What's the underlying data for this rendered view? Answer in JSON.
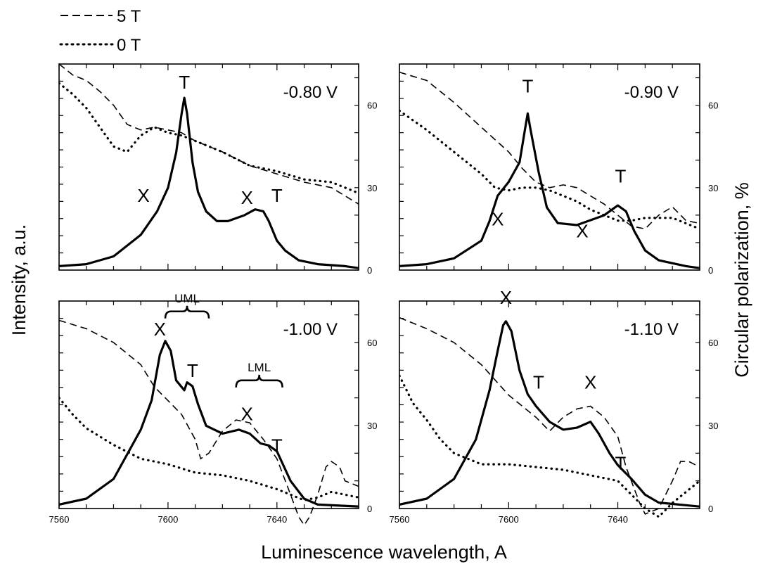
{
  "chart_data": {
    "type": "line",
    "x_label": "Luminescence wavelength, A",
    "y_label_left": "Intensity, a.u.",
    "y_label_right": "Circular polarization, %",
    "x_range": [
      7560,
      7670
    ],
    "x_ticks": [
      7560,
      7600,
      7640
    ],
    "right_y_range": [
      0,
      75
    ],
    "right_y_ticks": [
      0,
      30,
      60
    ],
    "legend": [
      {
        "label": "5 T",
        "style": "dashed"
      },
      {
        "label": "0 T",
        "style": "dotted"
      }
    ],
    "panels": [
      {
        "title": "-0.80 V",
        "intensity": [
          [
            7560,
            2
          ],
          [
            7570,
            3
          ],
          [
            7580,
            7
          ],
          [
            7590,
            18
          ],
          [
            7596,
            30
          ],
          [
            7600,
            42
          ],
          [
            7603,
            60
          ],
          [
            7605,
            80
          ],
          [
            7606,
            88
          ],
          [
            7607,
            80
          ],
          [
            7609,
            55
          ],
          [
            7611,
            40
          ],
          [
            7614,
            30
          ],
          [
            7618,
            25
          ],
          [
            7622,
            25
          ],
          [
            7628,
            28
          ],
          [
            7632,
            31
          ],
          [
            7635,
            30
          ],
          [
            7637,
            25
          ],
          [
            7640,
            15
          ],
          [
            7643,
            10
          ],
          [
            7648,
            5
          ],
          [
            7655,
            3
          ],
          [
            7665,
            2
          ],
          [
            7670,
            1
          ]
        ],
        "polarization_5T": [
          [
            7560,
            75
          ],
          [
            7565,
            71
          ],
          [
            7570,
            69
          ],
          [
            7575,
            65
          ],
          [
            7580,
            60
          ],
          [
            7585,
            53
          ],
          [
            7590,
            51
          ],
          [
            7595,
            52
          ],
          [
            7600,
            51
          ],
          [
            7605,
            50
          ],
          [
            7610,
            47
          ],
          [
            7620,
            43
          ],
          [
            7630,
            38
          ],
          [
            7640,
            35
          ],
          [
            7650,
            32
          ],
          [
            7660,
            30
          ],
          [
            7670,
            24
          ]
        ],
        "polarization_0T": [
          [
            7560,
            68
          ],
          [
            7565,
            64
          ],
          [
            7570,
            59
          ],
          [
            7575,
            52
          ],
          [
            7580,
            45
          ],
          [
            7585,
            43
          ],
          [
            7590,
            49
          ],
          [
            7595,
            52
          ],
          [
            7600,
            50
          ],
          [
            7605,
            49
          ],
          [
            7610,
            47
          ],
          [
            7620,
            43
          ],
          [
            7630,
            38
          ],
          [
            7640,
            36
          ],
          [
            7650,
            33
          ],
          [
            7660,
            32
          ],
          [
            7670,
            28
          ]
        ],
        "peak_labels": [
          {
            "text": "T",
            "x": 7606,
            "y": 96
          },
          {
            "text": "X",
            "x": 7591,
            "y": 38
          },
          {
            "text": "X",
            "x": 7629,
            "y": 37
          },
          {
            "text": "T",
            "x": 7640,
            "y": 38
          }
        ]
      },
      {
        "title": "-0.90 V",
        "intensity": [
          [
            7560,
            2
          ],
          [
            7570,
            3
          ],
          [
            7580,
            6
          ],
          [
            7590,
            15
          ],
          [
            7593,
            25
          ],
          [
            7596,
            38
          ],
          [
            7600,
            45
          ],
          [
            7604,
            55
          ],
          [
            7606,
            72
          ],
          [
            7607,
            80
          ],
          [
            7608,
            72
          ],
          [
            7611,
            50
          ],
          [
            7614,
            32
          ],
          [
            7618,
            24
          ],
          [
            7625,
            23
          ],
          [
            7635,
            28
          ],
          [
            7640,
            33
          ],
          [
            7643,
            30
          ],
          [
            7646,
            20
          ],
          [
            7650,
            10
          ],
          [
            7655,
            5
          ],
          [
            7665,
            2
          ],
          [
            7670,
            1
          ]
        ],
        "polarization_5T": [
          [
            7560,
            72
          ],
          [
            7570,
            69
          ],
          [
            7580,
            61
          ],
          [
            7590,
            52
          ],
          [
            7600,
            43
          ],
          [
            7605,
            37
          ],
          [
            7610,
            32
          ],
          [
            7615,
            30
          ],
          [
            7620,
            31
          ],
          [
            7625,
            30
          ],
          [
            7630,
            27
          ],
          [
            7635,
            24
          ],
          [
            7640,
            20
          ],
          [
            7645,
            16
          ],
          [
            7650,
            15
          ],
          [
            7655,
            20
          ],
          [
            7660,
            23
          ],
          [
            7665,
            18
          ],
          [
            7670,
            17
          ]
        ],
        "polarization_0T": [
          [
            7560,
            58
          ],
          [
            7570,
            51
          ],
          [
            7580,
            43
          ],
          [
            7590,
            35
          ],
          [
            7595,
            30
          ],
          [
            7600,
            29
          ],
          [
            7605,
            30
          ],
          [
            7610,
            30
          ],
          [
            7615,
            29
          ],
          [
            7620,
            27
          ],
          [
            7625,
            25
          ],
          [
            7630,
            22
          ],
          [
            7635,
            20
          ],
          [
            7640,
            18
          ],
          [
            7645,
            18
          ],
          [
            7650,
            19
          ],
          [
            7660,
            19
          ],
          [
            7670,
            15
          ]
        ],
        "peak_labels": [
          {
            "text": "T",
            "x": 7607,
            "y": 94
          },
          {
            "text": "X",
            "x": 7596,
            "y": 26
          },
          {
            "text": "X",
            "x": 7627,
            "y": 20
          },
          {
            "text": "T",
            "x": 7641,
            "y": 48
          }
        ]
      },
      {
        "title": "-1.00 V",
        "intensity": [
          [
            7560,
            2
          ],
          [
            7570,
            5
          ],
          [
            7580,
            15
          ],
          [
            7590,
            40
          ],
          [
            7594,
            55
          ],
          [
            7597,
            78
          ],
          [
            7599,
            85
          ],
          [
            7601,
            80
          ],
          [
            7603,
            65
          ],
          [
            7606,
            60
          ],
          [
            7607,
            64
          ],
          [
            7609,
            62
          ],
          [
            7611,
            53
          ],
          [
            7614,
            42
          ],
          [
            7620,
            38
          ],
          [
            7626,
            40
          ],
          [
            7630,
            38
          ],
          [
            7634,
            33
          ],
          [
            7637,
            32
          ],
          [
            7640,
            29
          ],
          [
            7645,
            14
          ],
          [
            7650,
            5
          ],
          [
            7655,
            2
          ],
          [
            7670,
            1
          ]
        ],
        "polarization_5T": [
          [
            7560,
            68
          ],
          [
            7570,
            65
          ],
          [
            7580,
            60
          ],
          [
            7590,
            52
          ],
          [
            7595,
            44
          ],
          [
            7600,
            39
          ],
          [
            7605,
            34
          ],
          [
            7610,
            25
          ],
          [
            7612,
            18
          ],
          [
            7615,
            20
          ],
          [
            7620,
            28
          ],
          [
            7625,
            32
          ],
          [
            7630,
            31
          ],
          [
            7635,
            25
          ],
          [
            7640,
            18
          ],
          [
            7645,
            5
          ],
          [
            7648,
            -3
          ],
          [
            7650,
            -6
          ],
          [
            7652,
            -3
          ],
          [
            7655,
            5
          ],
          [
            7658,
            15
          ],
          [
            7660,
            17
          ],
          [
            7663,
            15
          ],
          [
            7665,
            10
          ],
          [
            7670,
            8
          ]
        ],
        "polarization_0T": [
          [
            7560,
            40
          ],
          [
            7565,
            34
          ],
          [
            7570,
            29
          ],
          [
            7580,
            23
          ],
          [
            7590,
            18
          ],
          [
            7600,
            16
          ],
          [
            7610,
            13
          ],
          [
            7620,
            12
          ],
          [
            7630,
            10
          ],
          [
            7640,
            7
          ],
          [
            7645,
            5
          ],
          [
            7650,
            3
          ],
          [
            7655,
            4
          ],
          [
            7660,
            6
          ],
          [
            7665,
            5
          ],
          [
            7670,
            4
          ]
        ],
        "peak_labels": [
          {
            "text": "X",
            "x": 7597,
            "y": 91
          },
          {
            "text": "T",
            "x": 7609,
            "y": 70
          },
          {
            "text": "X",
            "x": 7629,
            "y": 48
          },
          {
            "text": "T",
            "x": 7640,
            "y": 32
          }
        ],
        "brackets": [
          {
            "text": "UML",
            "x1": 7599,
            "x2": 7615,
            "y": 100
          },
          {
            "text": "LML",
            "x1": 7625,
            "x2": 7642,
            "y": 65
          }
        ]
      },
      {
        "title": "-1.10 V",
        "intensity": [
          [
            7560,
            2
          ],
          [
            7570,
            5
          ],
          [
            7580,
            15
          ],
          [
            7588,
            35
          ],
          [
            7593,
            60
          ],
          [
            7596,
            80
          ],
          [
            7598,
            93
          ],
          [
            7599,
            95
          ],
          [
            7601,
            90
          ],
          [
            7604,
            70
          ],
          [
            7607,
            58
          ],
          [
            7610,
            52
          ],
          [
            7615,
            44
          ],
          [
            7620,
            40
          ],
          [
            7625,
            41
          ],
          [
            7630,
            44
          ],
          [
            7633,
            38
          ],
          [
            7637,
            28
          ],
          [
            7640,
            22
          ],
          [
            7645,
            15
          ],
          [
            7650,
            7
          ],
          [
            7655,
            3
          ],
          [
            7670,
            1
          ]
        ],
        "polarization_5T": [
          [
            7560,
            69
          ],
          [
            7570,
            65
          ],
          [
            7580,
            60
          ],
          [
            7590,
            52
          ],
          [
            7600,
            41
          ],
          [
            7605,
            37
          ],
          [
            7610,
            33
          ],
          [
            7615,
            28
          ],
          [
            7620,
            33
          ],
          [
            7625,
            36
          ],
          [
            7630,
            37
          ],
          [
            7635,
            33
          ],
          [
            7640,
            26
          ],
          [
            7643,
            15
          ],
          [
            7648,
            2
          ],
          [
            7650,
            -2
          ],
          [
            7655,
            0
          ],
          [
            7660,
            10
          ],
          [
            7663,
            17
          ],
          [
            7666,
            17
          ],
          [
            7670,
            15
          ]
        ],
        "polarization_0T": [
          [
            7560,
            48
          ],
          [
            7565,
            38
          ],
          [
            7570,
            32
          ],
          [
            7575,
            25
          ],
          [
            7580,
            20
          ],
          [
            7590,
            16
          ],
          [
            7600,
            16
          ],
          [
            7610,
            15
          ],
          [
            7620,
            14
          ],
          [
            7630,
            12
          ],
          [
            7640,
            10
          ],
          [
            7645,
            5
          ],
          [
            7650,
            0
          ],
          [
            7655,
            -3
          ],
          [
            7660,
            2
          ],
          [
            7665,
            6
          ],
          [
            7670,
            10
          ]
        ],
        "peak_labels": [
          {
            "text": "X",
            "x": 7599,
            "y": 107
          },
          {
            "text": "T",
            "x": 7611,
            "y": 64
          },
          {
            "text": "X",
            "x": 7630,
            "y": 64
          },
          {
            "text": "T",
            "x": 7641,
            "y": 23
          }
        ]
      }
    ]
  }
}
